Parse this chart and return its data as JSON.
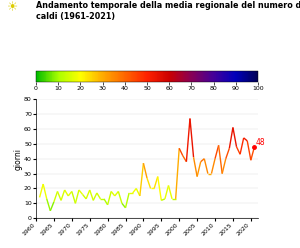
{
  "title_line1": "Andamento temporale della media regionale del numero di giorni",
  "title_line2": "caldi (1961-2021)",
  "ylabel": "giorni",
  "xlim": [
    1960,
    2022
  ],
  "ylim": [
    0,
    80
  ],
  "yticks": [
    0,
    10,
    20,
    30,
    40,
    50,
    60,
    70,
    80
  ],
  "xticks": [
    1960,
    1965,
    1970,
    1975,
    1980,
    1985,
    1990,
    1995,
    2000,
    2005,
    2010,
    2015,
    2020
  ],
  "colorbar_ticks": [
    0,
    10,
    20,
    30,
    40,
    50,
    60,
    70,
    80,
    90,
    100
  ],
  "last_value_label": "48",
  "colors_list": [
    "#00bb00",
    "#aaff00",
    "#ffff00",
    "#ffaa00",
    "#ff6600",
    "#ff2200",
    "#cc0000",
    "#880055",
    "#440099",
    "#0000bb",
    "#000055"
  ],
  "years": [
    1961,
    1962,
    1963,
    1964,
    1965,
    1966,
    1967,
    1968,
    1969,
    1970,
    1971,
    1972,
    1973,
    1974,
    1975,
    1976,
    1977,
    1978,
    1979,
    1980,
    1981,
    1982,
    1983,
    1984,
    1985,
    1986,
    1987,
    1988,
    1989,
    1990,
    1991,
    1992,
    1993,
    1994,
    1995,
    1996,
    1997,
    1998,
    1999,
    2000,
    2001,
    2002,
    2003,
    2004,
    2005,
    2006,
    2007,
    2008,
    2009,
    2010,
    2011,
    2012,
    2013,
    2014,
    2015,
    2016,
    2017,
    2018,
    2019,
    2020,
    2021
  ],
  "values": [
    14,
    23,
    13,
    5,
    11,
    18,
    12,
    19,
    15,
    18,
    10,
    19,
    16,
    13,
    19,
    12,
    17,
    13,
    13,
    9,
    18,
    15,
    18,
    10,
    7,
    17,
    17,
    20,
    15,
    37,
    27,
    20,
    20,
    28,
    12,
    13,
    22,
    13,
    13,
    47,
    42,
    38,
    67,
    41,
    28,
    38,
    40,
    30,
    30,
    40,
    49,
    30,
    40,
    47,
    61,
    48,
    43,
    54,
    52,
    39,
    48
  ]
}
